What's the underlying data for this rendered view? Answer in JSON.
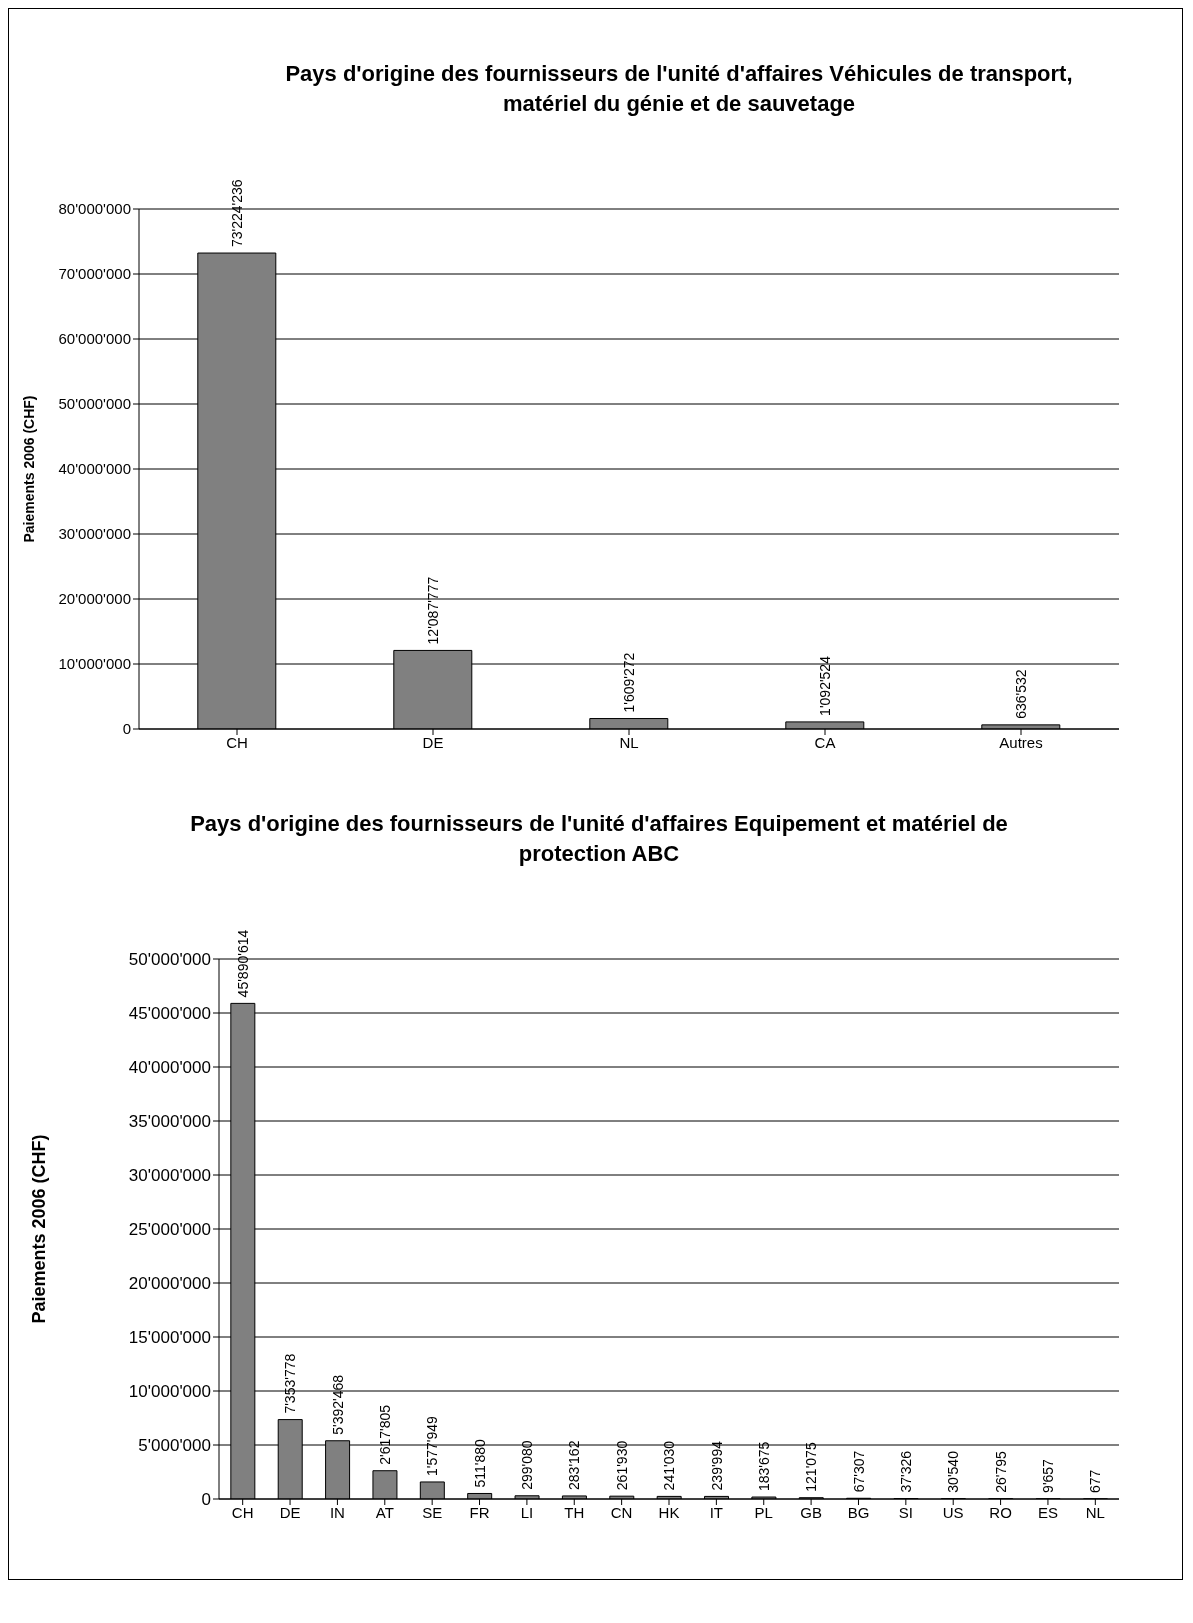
{
  "chart_data": [
    {
      "type": "bar",
      "title": "Pays d'origine des fournisseurs de l'unité d'affaires Véhicules de transport, matériel du génie et de sauvetage",
      "ylabel": "Paiements 2006 (CHF)",
      "categories": [
        "CH",
        "DE",
        "NL",
        "CA",
        "Autres"
      ],
      "values": [
        73224236,
        12087777,
        1609272,
        1092524,
        636532
      ],
      "value_labels": [
        "73'224'236",
        "12'087'777",
        "1'609'272",
        "1'092'524",
        "636'532"
      ],
      "color": "#808080",
      "ylim": [
        0,
        80000000
      ],
      "yticks": [
        {
          "value": 0,
          "label": "0"
        },
        {
          "value": 10000000,
          "label": "10'000'000"
        },
        {
          "value": 20000000,
          "label": "20'000'000"
        },
        {
          "value": 30000000,
          "label": "30'000'000"
        },
        {
          "value": 40000000,
          "label": "40'000'000"
        },
        {
          "value": 50000000,
          "label": "50'000'000"
        },
        {
          "value": 60000000,
          "label": "60'000'000"
        },
        {
          "value": 70000000,
          "label": "70'000'000"
        },
        {
          "value": 80000000,
          "label": "80'000'000"
        }
      ],
      "grid": "y"
    },
    {
      "type": "bar",
      "title": "Pays d'origine des fournisseurs de l'unité d'affaires Equipement et matériel de protection ABC",
      "ylabel": "Paiements 2006 (CHF)",
      "categories": [
        "CH",
        "DE",
        "IN",
        "AT",
        "SE",
        "FR",
        "LI",
        "TH",
        "CN",
        "HK",
        "IT",
        "PL",
        "GB",
        "BG",
        "SI",
        "US",
        "RO",
        "ES",
        "NL"
      ],
      "values": [
        45890614,
        7353778,
        5392468,
        2617805,
        1577949,
        511880,
        299080,
        283162,
        261930,
        241030,
        239994,
        183675,
        121075,
        67307,
        37326,
        30540,
        26795,
        9657,
        677
      ],
      "value_labels": [
        "45'890'614",
        "7'353'778",
        "5'392'468",
        "2'617'805",
        "1'577'949",
        "511'880",
        "299'080",
        "283'162",
        "261'930",
        "241'030",
        "239'994",
        "183'675",
        "121'075",
        "67'307",
        "37'326",
        "30'540",
        "26'795",
        "9'657",
        "677"
      ],
      "color": "#808080",
      "ylim": [
        0,
        50000000
      ],
      "yticks": [
        {
          "value": 0,
          "label": "0"
        },
        {
          "value": 5000000,
          "label": "5'000'000"
        },
        {
          "value": 10000000,
          "label": "10'000'000"
        },
        {
          "value": 15000000,
          "label": "15'000'000"
        },
        {
          "value": 20000000,
          "label": "20'000'000"
        },
        {
          "value": 25000000,
          "label": "25'000'000"
        },
        {
          "value": 30000000,
          "label": "30'000'000"
        },
        {
          "value": 35000000,
          "label": "35'000'000"
        },
        {
          "value": 40000000,
          "label": "40'000'000"
        },
        {
          "value": 45000000,
          "label": "45'000'000"
        },
        {
          "value": 50000000,
          "label": "50'000'000"
        }
      ],
      "grid": "y"
    }
  ]
}
